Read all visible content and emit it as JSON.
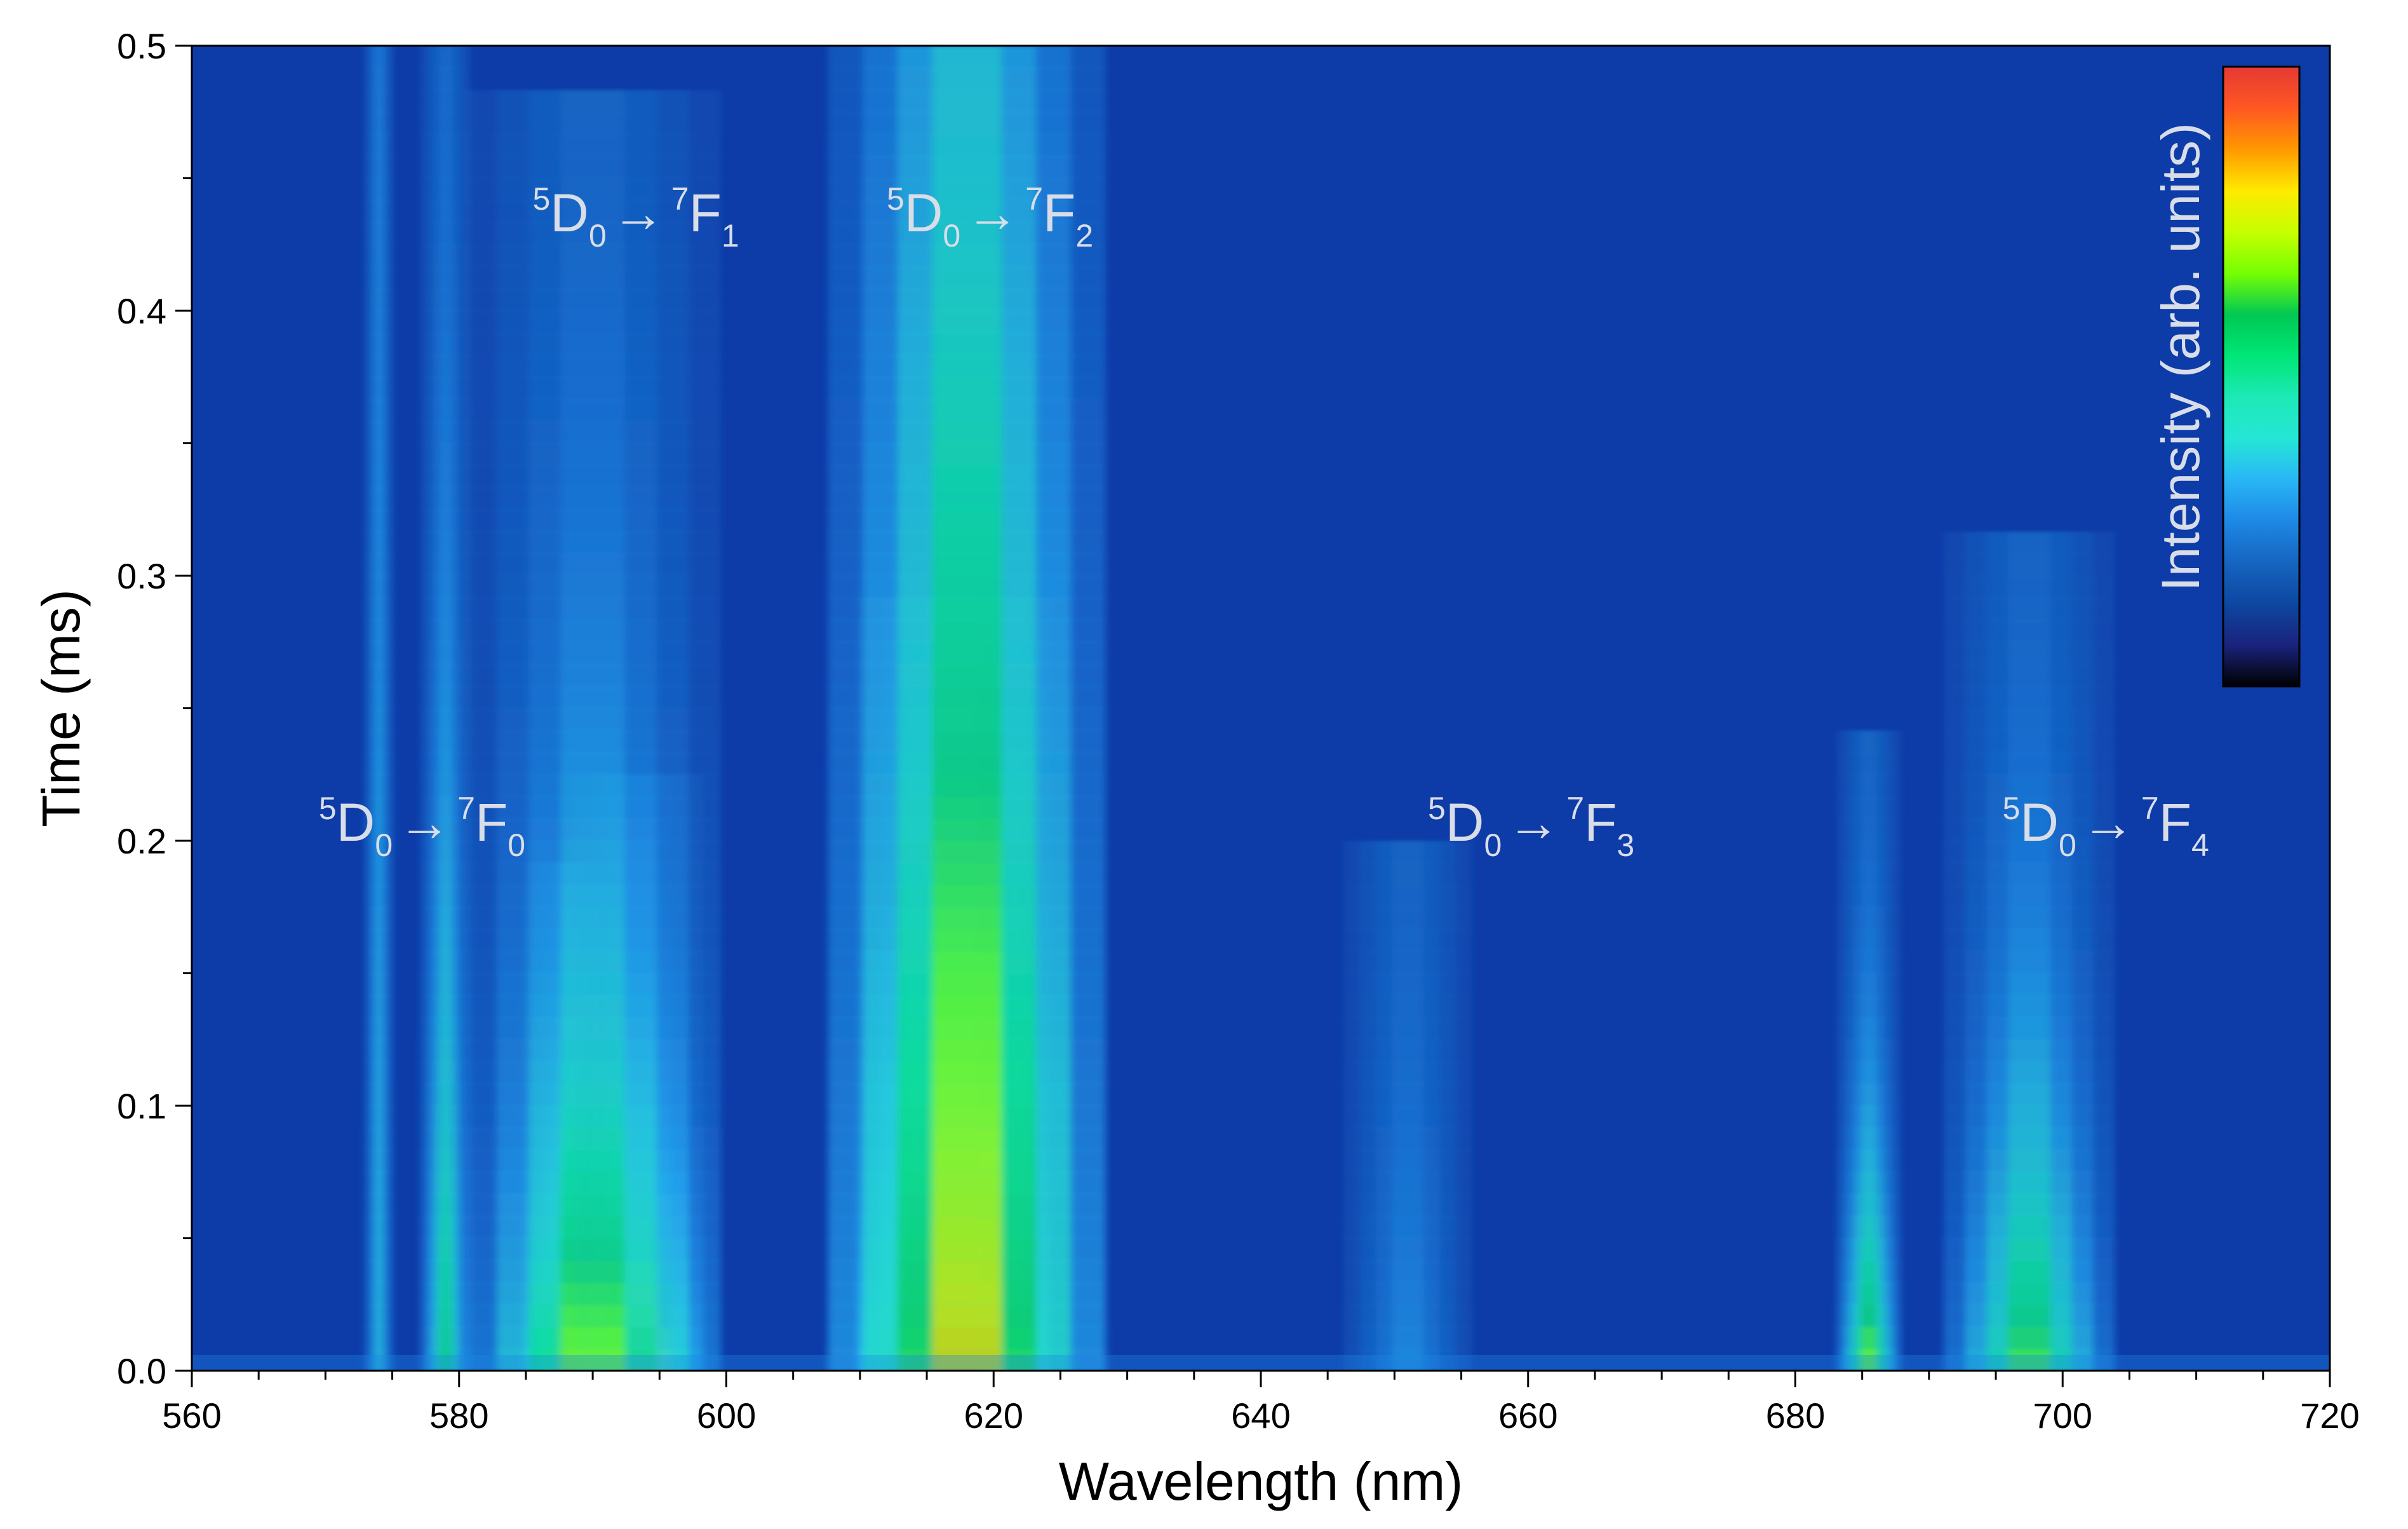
{
  "chart_data": {
    "type": "heatmap",
    "title": "",
    "xlabel": "Wavelength (nm)",
    "ylabel": "Time (ms)",
    "xlim": [
      560,
      720
    ],
    "ylim": [
      0.0,
      0.5
    ],
    "x_ticks": [
      560,
      580,
      600,
      620,
      640,
      660,
      680,
      700,
      720
    ],
    "x_tick_labels": [
      "560",
      "580",
      "600",
      "620",
      "640",
      "660",
      "680",
      "700",
      "720"
    ],
    "y_ticks": [
      0.0,
      0.1,
      0.2,
      0.3,
      0.4,
      0.5
    ],
    "y_tick_labels": [
      "0.0",
      "0.1",
      "0.2",
      "0.3",
      "0.4",
      "0.5"
    ],
    "grid": false,
    "colorbar": {
      "label": "Intensity (arb. units)",
      "placement": "top-right, inside plot",
      "colormap": [
        "#000000",
        "#1a237e",
        "#0d47a1",
        "#1565c0",
        "#1e88e5",
        "#29b6f6",
        "#26e6d6",
        "#1de9b6",
        "#00e676",
        "#00c853",
        "#76ff03",
        "#c6ff00",
        "#ffea00",
        "#ff9800",
        "#ff5722",
        "#e53935"
      ]
    },
    "background_color": "#0d3ba8",
    "peaks": [
      {
        "center_nm": 574,
        "width_nm": 0.7,
        "peak_intensity": 0.25,
        "decay_ms": 0.6
      },
      {
        "center_nm": 579,
        "width_nm": 1.2,
        "peak_intensity": 0.45,
        "decay_ms": 0.25
      },
      {
        "center_nm": 588,
        "width_nm": 2.0,
        "peak_intensity": 1.0,
        "decay_ms": 0.06
      },
      {
        "center_nm": 593.5,
        "width_nm": 3.0,
        "peak_intensity": 0.95,
        "decay_ms": 0.07
      },
      {
        "center_nm": 590,
        "width_nm": 6.0,
        "peak_intensity": 0.6,
        "decay_ms": 0.18
      },
      {
        "center_nm": 612.5,
        "width_nm": 1.5,
        "peak_intensity": 0.95,
        "decay_ms": 0.05
      },
      {
        "center_nm": 617,
        "width_nm": 4.5,
        "peak_intensity": 1.05,
        "decay_ms": 0.09
      },
      {
        "center_nm": 618,
        "width_nm": 6.5,
        "peak_intensity": 0.75,
        "decay_ms": 0.5
      },
      {
        "center_nm": 651,
        "width_nm": 3.0,
        "peak_intensity": 0.15,
        "decay_ms": 0.15
      },
      {
        "center_nm": 685.5,
        "width_nm": 1.5,
        "peak_intensity": 0.6,
        "decay_ms": 0.09
      },
      {
        "center_nm": 697.5,
        "width_nm": 4.0,
        "peak_intensity": 0.55,
        "decay_ms": 0.12
      }
    ],
    "annotations": [
      {
        "superscript_1": "5",
        "base_1": "D",
        "subscript_1": "0",
        "arrow": "→",
        "superscript_2": "7",
        "base_2": "F",
        "subscript_2": "0",
        "x_nm": 569.5,
        "y_ms": 0.2
      },
      {
        "superscript_1": "5",
        "base_1": "D",
        "subscript_1": "0",
        "arrow": "→",
        "superscript_2": "7",
        "base_2": "F",
        "subscript_2": "1",
        "x_nm": 585.5,
        "y_ms": 0.43
      },
      {
        "superscript_1": "5",
        "base_1": "D",
        "subscript_1": "0",
        "arrow": "→",
        "superscript_2": "7",
        "base_2": "F",
        "subscript_2": "2",
        "x_nm": 612,
        "y_ms": 0.43
      },
      {
        "superscript_1": "5",
        "base_1": "D",
        "subscript_1": "0",
        "arrow": "→",
        "superscript_2": "7",
        "base_2": "F",
        "subscript_2": "3",
        "x_nm": 652.5,
        "y_ms": 0.2
      },
      {
        "superscript_1": "5",
        "base_1": "D",
        "subscript_1": "0",
        "arrow": "→",
        "superscript_2": "7",
        "base_2": "F",
        "subscript_2": "4",
        "x_nm": 695.5,
        "y_ms": 0.2
      }
    ]
  }
}
